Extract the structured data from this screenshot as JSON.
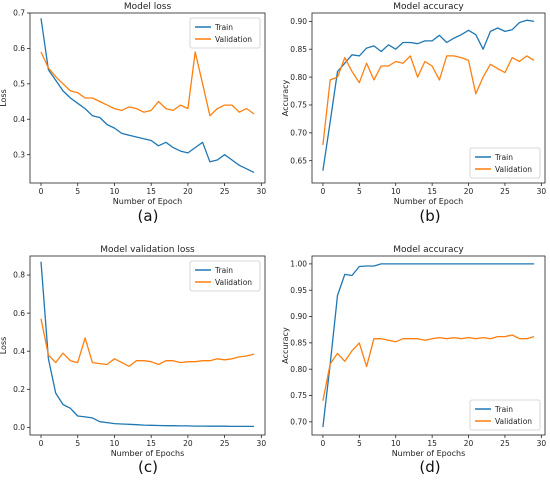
{
  "chart_data": [
    {
      "type": "line",
      "title": "Model loss",
      "xlabel": "Number of Epoch",
      "ylabel": "Loss",
      "caption": "(a)",
      "xlim": [
        -1.5,
        30.5
      ],
      "ylim": [
        0.22,
        0.7
      ],
      "xticks": [
        0,
        5,
        10,
        15,
        20,
        25,
        30
      ],
      "yticks": [
        0.3,
        0.4,
        0.5,
        0.6,
        0.7
      ],
      "ytick_decimals": 1,
      "grid": false,
      "legend": "top-right",
      "x": [
        0,
        1,
        2,
        3,
        4,
        5,
        6,
        7,
        8,
        9,
        10,
        11,
        12,
        13,
        14,
        15,
        16,
        17,
        18,
        19,
        20,
        21,
        22,
        23,
        24,
        25,
        26,
        27,
        28,
        29
      ],
      "series": [
        {
          "name": "Train",
          "values": [
            0.685,
            0.54,
            0.51,
            0.48,
            0.46,
            0.445,
            0.43,
            0.41,
            0.405,
            0.385,
            0.375,
            0.36,
            0.355,
            0.35,
            0.345,
            0.34,
            0.325,
            0.335,
            0.32,
            0.31,
            0.305,
            0.32,
            0.335,
            0.28,
            0.285,
            0.3,
            0.285,
            0.27,
            0.26,
            0.25
          ]
        },
        {
          "name": "Validation",
          "values": [
            0.59,
            0.545,
            0.52,
            0.5,
            0.48,
            0.475,
            0.46,
            0.46,
            0.45,
            0.44,
            0.43,
            0.425,
            0.435,
            0.43,
            0.42,
            0.425,
            0.45,
            0.43,
            0.425,
            0.44,
            0.43,
            0.59,
            0.5,
            0.41,
            0.43,
            0.44,
            0.44,
            0.42,
            0.43,
            0.415
          ]
        }
      ]
    },
    {
      "type": "line",
      "title": "Model accuracy",
      "xlabel": "Number of Epoch",
      "ylabel": "Accuracy",
      "caption": "(b)",
      "xlim": [
        -1.5,
        30.5
      ],
      "ylim": [
        0.61,
        0.915
      ],
      "xticks": [
        0,
        5,
        10,
        15,
        20,
        25,
        30
      ],
      "yticks": [
        0.65,
        0.7,
        0.75,
        0.8,
        0.85,
        0.9
      ],
      "ytick_decimals": 2,
      "grid": false,
      "legend": "bottom-right",
      "x": [
        0,
        1,
        2,
        3,
        4,
        5,
        6,
        7,
        8,
        9,
        10,
        11,
        12,
        13,
        14,
        15,
        16,
        17,
        18,
        19,
        20,
        21,
        22,
        23,
        24,
        25,
        26,
        27,
        28,
        29
      ],
      "series": [
        {
          "name": "Train",
          "values": [
            0.632,
            0.72,
            0.81,
            0.825,
            0.84,
            0.838,
            0.852,
            0.856,
            0.846,
            0.858,
            0.85,
            0.862,
            0.862,
            0.86,
            0.865,
            0.865,
            0.875,
            0.862,
            0.87,
            0.876,
            0.884,
            0.876,
            0.85,
            0.882,
            0.888,
            0.882,
            0.885,
            0.898,
            0.902,
            0.9
          ]
        },
        {
          "name": "Validation",
          "values": [
            0.678,
            0.795,
            0.8,
            0.835,
            0.81,
            0.79,
            0.825,
            0.795,
            0.82,
            0.82,
            0.828,
            0.825,
            0.838,
            0.8,
            0.828,
            0.82,
            0.795,
            0.838,
            0.838,
            0.835,
            0.83,
            0.77,
            0.8,
            0.823,
            0.815,
            0.808,
            0.835,
            0.828,
            0.838,
            0.83
          ]
        }
      ]
    },
    {
      "type": "line",
      "title": "Model validation loss",
      "xlabel": "Number of Epochs",
      "ylabel": "Loss",
      "caption": "(c)",
      "xlim": [
        -1.5,
        30.5
      ],
      "ylim": [
        -0.04,
        0.9
      ],
      "xticks": [
        0,
        5,
        10,
        15,
        20,
        25,
        30
      ],
      "yticks": [
        0.0,
        0.2,
        0.4,
        0.6,
        0.8
      ],
      "ytick_decimals": 1,
      "grid": false,
      "legend": "top-right",
      "x": [
        0,
        1,
        2,
        3,
        4,
        5,
        6,
        7,
        8,
        9,
        10,
        11,
        12,
        13,
        14,
        15,
        16,
        17,
        18,
        19,
        20,
        21,
        22,
        23,
        24,
        25,
        26,
        27,
        28,
        29
      ],
      "series": [
        {
          "name": "Train",
          "values": [
            0.87,
            0.36,
            0.18,
            0.12,
            0.1,
            0.06,
            0.055,
            0.05,
            0.03,
            0.025,
            0.02,
            0.018,
            0.016,
            0.014,
            0.012,
            0.011,
            0.01,
            0.009,
            0.009,
            0.008,
            0.008,
            0.007,
            0.007,
            0.006,
            0.006,
            0.006,
            0.005,
            0.005,
            0.005,
            0.005
          ]
        },
        {
          "name": "Validation",
          "values": [
            0.57,
            0.38,
            0.34,
            0.39,
            0.35,
            0.34,
            0.47,
            0.34,
            0.335,
            0.33,
            0.36,
            0.34,
            0.32,
            0.35,
            0.35,
            0.345,
            0.33,
            0.35,
            0.35,
            0.34,
            0.345,
            0.345,
            0.35,
            0.35,
            0.36,
            0.355,
            0.36,
            0.37,
            0.375,
            0.385
          ]
        }
      ]
    },
    {
      "type": "line",
      "title": "Model accuracy",
      "xlabel": "Number of Epochs",
      "ylabel": "Accuracy",
      "caption": "(d)",
      "xlim": [
        -1.5,
        30.5
      ],
      "ylim": [
        0.675,
        1.015
      ],
      "xticks": [
        0,
        5,
        10,
        15,
        20,
        25,
        30
      ],
      "yticks": [
        0.7,
        0.75,
        0.8,
        0.85,
        0.9,
        0.95,
        1.0
      ],
      "ytick_decimals": 2,
      "grid": false,
      "legend": "bottom-right",
      "x": [
        0,
        1,
        2,
        3,
        4,
        5,
        6,
        7,
        8,
        9,
        10,
        11,
        12,
        13,
        14,
        15,
        16,
        17,
        18,
        19,
        20,
        21,
        22,
        23,
        24,
        25,
        26,
        27,
        28,
        29
      ],
      "series": [
        {
          "name": "Train",
          "values": [
            0.69,
            0.81,
            0.94,
            0.98,
            0.978,
            0.995,
            0.996,
            0.996,
            1.0,
            1.0,
            1.0,
            1.0,
            1.0,
            1.0,
            1.0,
            1.0,
            1.0,
            1.0,
            1.0,
            1.0,
            1.0,
            1.0,
            1.0,
            1.0,
            1.0,
            1.0,
            1.0,
            1.0,
            1.0,
            1.0
          ]
        },
        {
          "name": "Validation",
          "values": [
            0.74,
            0.81,
            0.83,
            0.815,
            0.835,
            0.85,
            0.805,
            0.858,
            0.858,
            0.855,
            0.852,
            0.858,
            0.858,
            0.858,
            0.855,
            0.858,
            0.86,
            0.858,
            0.86,
            0.858,
            0.86,
            0.858,
            0.86,
            0.858,
            0.862,
            0.862,
            0.865,
            0.858,
            0.858,
            0.862
          ]
        }
      ]
    }
  ],
  "colors": {
    "train": "#1f77b4",
    "validation": "#ff7f0e",
    "axis": "#222222",
    "legend_border": "#cccccc"
  }
}
